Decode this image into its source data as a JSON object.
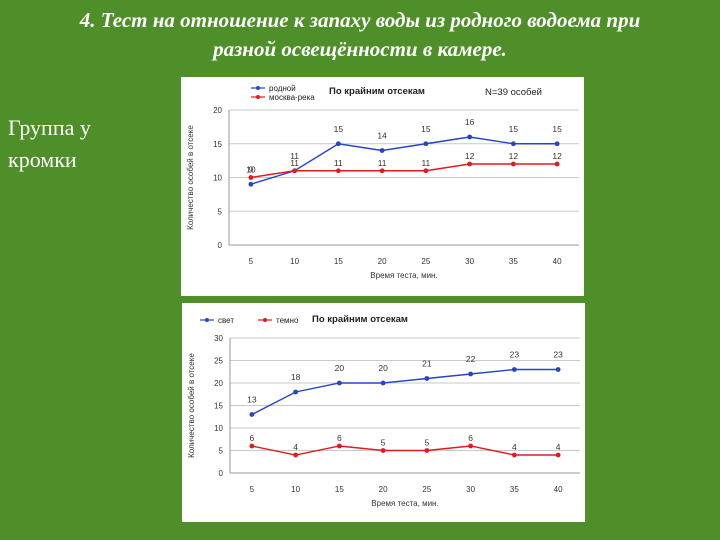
{
  "slide": {
    "title_line1": "4. Тест на отношение к запаху воды из родного водоема при",
    "title_line2": "разной освещённости в камере.",
    "side_line1": "Группа у",
    "side_line2": "кромки"
  },
  "chart_data": [
    {
      "type": "line",
      "title": "По крайним отсекам",
      "note": "N=39 особей",
      "xlabel": "Время теста, мин.",
      "ylabel": "Количество особей в отсеке",
      "categories": [
        5,
        10,
        15,
        20,
        25,
        30,
        35,
        40
      ],
      "ylim": [
        0,
        20
      ],
      "yticks": [
        0,
        5,
        10,
        15,
        20
      ],
      "grid": true,
      "legend_position": "top-left",
      "series": [
        {
          "name": "родной",
          "color": "#2743c8",
          "values": [
            9,
            11,
            15,
            14,
            15,
            16,
            15,
            15
          ],
          "labels": [
            "9",
            "11",
            "15",
            "14",
            "15",
            "16",
            "15",
            "15"
          ]
        },
        {
          "name": "москва-река",
          "color": "#e01b1b",
          "values": [
            10,
            11,
            11,
            11,
            11,
            12,
            12,
            12
          ],
          "labels": [
            "10",
            "11",
            "11",
            "11",
            "11",
            "12",
            "12",
            "12"
          ]
        }
      ]
    },
    {
      "type": "line",
      "title": "По крайним отсекам",
      "xlabel": "Время теста, мин.",
      "ylabel": "Количество особей в отсеке",
      "categories": [
        5,
        10,
        15,
        20,
        25,
        30,
        35,
        40
      ],
      "ylim": [
        0,
        30
      ],
      "yticks": [
        0,
        5,
        10,
        15,
        20,
        25,
        30
      ],
      "grid": true,
      "legend_position": "top-left",
      "series": [
        {
          "name": "свет",
          "color": "#2743c8",
          "values": [
            13,
            18,
            20,
            20,
            21,
            22,
            23,
            23
          ],
          "labels": [
            "13",
            "18",
            "20",
            "20",
            "21",
            "22",
            "23",
            "23"
          ]
        },
        {
          "name": "темно",
          "color": "#e01b1b",
          "values": [
            6,
            4,
            6,
            5,
            5,
            6,
            4,
            4
          ],
          "labels": [
            "6",
            "4",
            "6",
            "5",
            "5",
            "6",
            "4",
            "4"
          ]
        }
      ]
    }
  ]
}
